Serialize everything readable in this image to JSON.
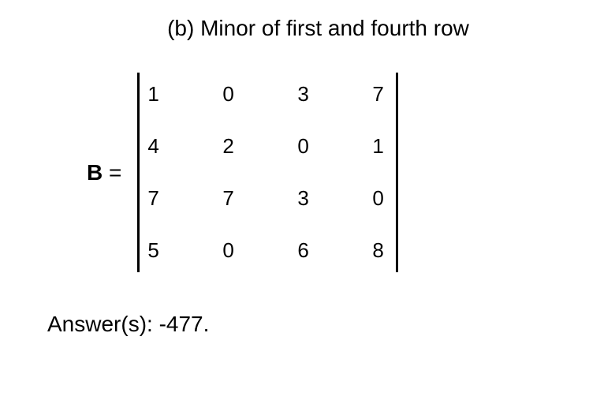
{
  "title": "(b) Minor of first and fourth row",
  "matrix": {
    "label": "B",
    "equals": "=",
    "rows": [
      [
        "1",
        "0",
        "3",
        "7"
      ],
      [
        "4",
        "2",
        "0",
        "1"
      ],
      [
        "7",
        "7",
        "3",
        "0"
      ],
      [
        "5",
        "0",
        "6",
        "8"
      ]
    ]
  },
  "answer": "Answer(s): -477.",
  "colors": {
    "background": "#ffffff",
    "text": "#000000",
    "bracket": "#000000"
  },
  "typography": {
    "title_fontsize": 28,
    "cell_fontsize": 26,
    "label_fontsize": 28,
    "answer_fontsize": 28,
    "font_family": "Arial, sans-serif"
  },
  "layout": {
    "column_gap": 75,
    "row_gap": 35,
    "bracket_width": 3
  }
}
